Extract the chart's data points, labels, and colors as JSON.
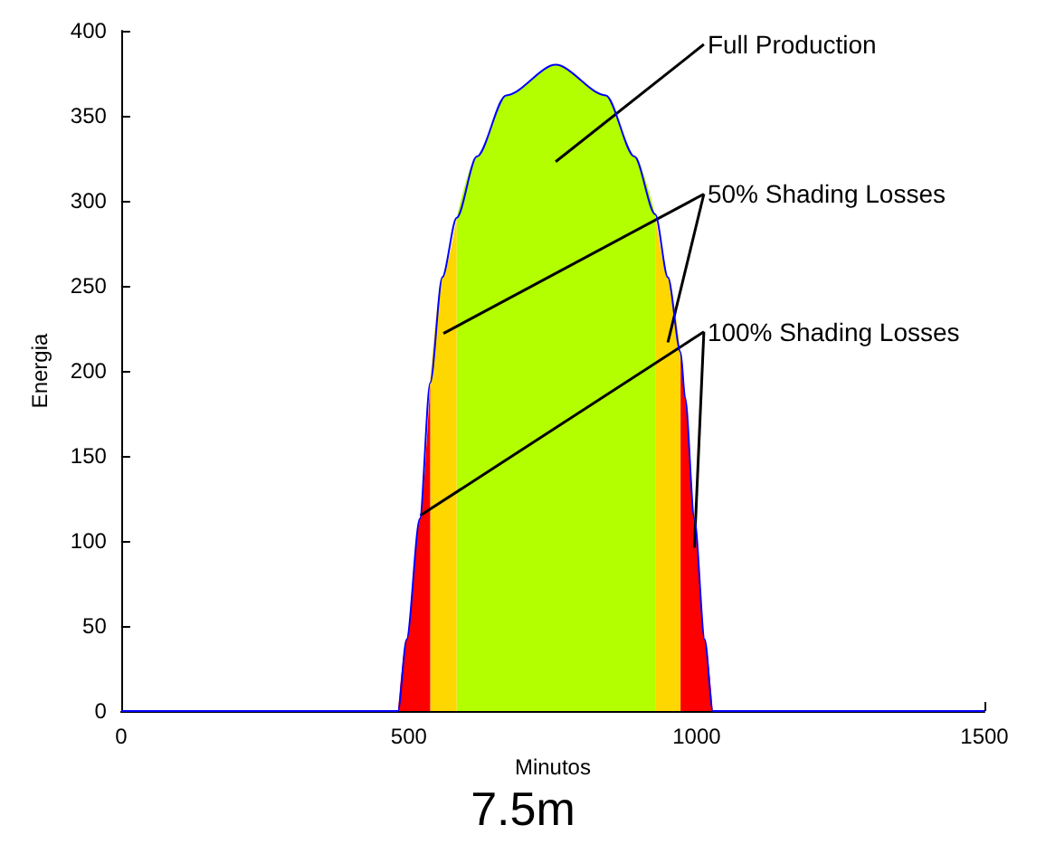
{
  "chart_data": {
    "type": "area",
    "title": "7.5m",
    "xlabel": "Minutos",
    "ylabel": "Energia",
    "xlim": [
      0,
      1500
    ],
    "xticks": [
      0,
      500,
      1000,
      1500
    ],
    "ylim": [
      0,
      400
    ],
    "yticks": [
      0,
      50,
      100,
      150,
      200,
      250,
      300,
      350,
      400
    ],
    "grid": false,
    "series": [
      {
        "color": "#b3ff00",
        "x": [
          583,
          618,
          669,
          755,
          842,
          892,
          928
        ],
        "values": [
          290,
          326,
          362,
          380,
          362,
          326,
          292
        ]
      },
      {
        "color": "#ffd700",
        "x": [
          537,
          558,
          583,
          755,
          928,
          950,
          972
        ],
        "values": [
          193,
          255,
          290,
          null,
          292,
          255,
          211
        ]
      },
      {
        "color": "#ff0000",
        "x": [
          481,
          496,
          519,
          537,
          755,
          972,
          980,
          996,
          1014,
          1028
        ],
        "values": [
          0,
          42,
          113,
          193,
          null,
          211,
          184,
          113,
          42,
          0
        ]
      },
      {
        "type": "line",
        "color": "#0000ff",
        "x": [
          0,
          481,
          496,
          519,
          537,
          558,
          583,
          618,
          669,
          755,
          842,
          892,
          928,
          950,
          972,
          980,
          996,
          1014,
          1028,
          1500
        ],
        "values": [
          0,
          0,
          42,
          113,
          193,
          255,
          290,
          326,
          362,
          380,
          362,
          326,
          292,
          255,
          211,
          184,
          113,
          42,
          0,
          0
        ]
      }
    ],
    "annotations": [
      "Full Production",
      {
        "text": "50% Shading Losses",
        "x": 560,
        "y": 222
      },
      {
        "text": "100% Shading Losses",
        "x": 520,
        "y": 115
      }
    ]
  }
}
